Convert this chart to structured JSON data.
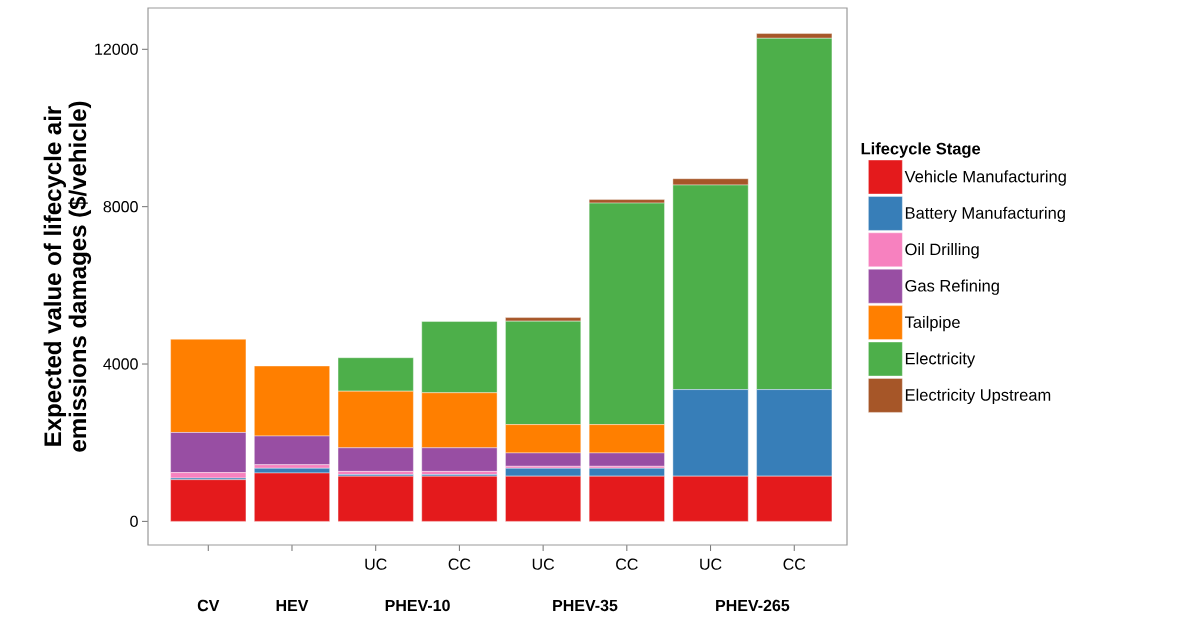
{
  "chart_data": {
    "type": "bar",
    "stacked": true,
    "ylabel": "Expected value of lifecycle air emissions damages ($/vehicle)",
    "legend_title": "Lifecycle Stage",
    "categories": [
      null,
      null,
      "UC",
      "CC",
      "UC",
      "CC",
      "UC",
      "CC"
    ],
    "annotations": [
      "CV",
      "HEV",
      "PHEV-10",
      "PHEV-35",
      "PHEV-265"
    ],
    "series": [
      {
        "name": "Vehicle Manufacturing",
        "color": "#e41a1c",
        "values": [
          1060,
          1230,
          1150,
          1150,
          1150,
          1150,
          1150,
          1150
        ]
      },
      {
        "name": "Battery Manufacturing",
        "color": "#377eb8",
        "values": [
          40,
          120,
          40,
          40,
          200,
          200,
          2200,
          2200
        ]
      },
      {
        "name": "Oil Drilling",
        "color": "#f781bf",
        "values": [
          140,
          90,
          80,
          80,
          50,
          50,
          0,
          0
        ]
      },
      {
        "name": "Gas Refining",
        "color": "#984ea3",
        "values": [
          1020,
          730,
          600,
          600,
          340,
          340,
          0,
          0
        ]
      },
      {
        "name": "Tailpipe",
        "color": "#ff7f00",
        "values": [
          2370,
          1780,
          1440,
          1400,
          720,
          720,
          0,
          0
        ]
      },
      {
        "name": "Electricity",
        "color": "#4daf4a",
        "values": [
          0,
          0,
          850,
          1810,
          2630,
          5630,
          5200,
          8930
        ]
      },
      {
        "name": "Electricity Upstream",
        "color": "#a65628",
        "values": [
          0,
          0,
          0,
          0,
          90,
          90,
          160,
          120
        ]
      }
    ],
    "ylim": [
      -600,
      13050
    ],
    "yticks": [
      0,
      4000,
      8000,
      12000
    ],
    "legend": "right",
    "grid": false
  }
}
